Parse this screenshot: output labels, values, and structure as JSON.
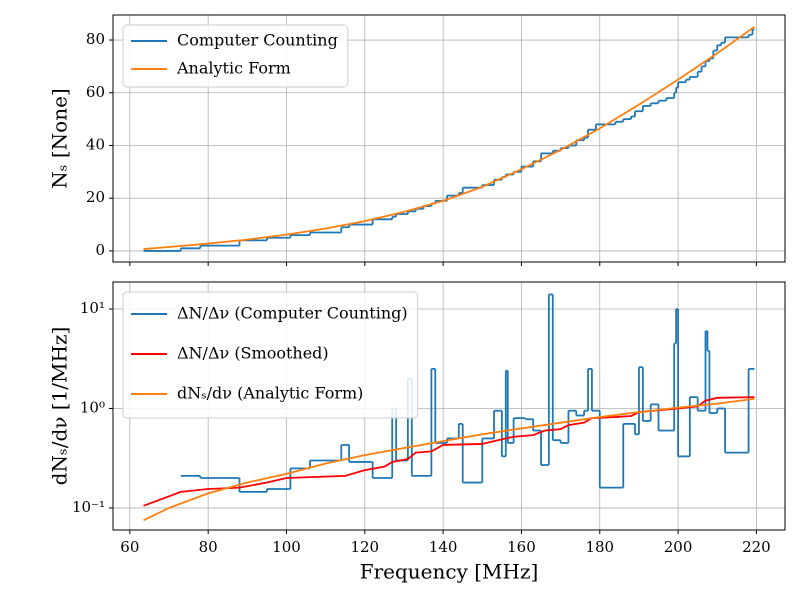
{
  "chart_data": [
    {
      "type": "line",
      "ylabel": "Nₛ [None]",
      "xlim": [
        55.7,
        227.3
      ],
      "ylim": [
        -4.2,
        89.5
      ],
      "xticks": [
        60,
        80,
        100,
        120,
        140,
        160,
        180,
        200,
        220
      ],
      "xticklabels": false,
      "yticks": [
        0,
        20,
        40,
        60,
        80
      ],
      "grid": true,
      "legend": "upper left",
      "series": [
        {
          "name": "Computer Counting",
          "color": "#1f77b4",
          "drawstyle": "steps",
          "bins": [
            63.5,
            73,
            78,
            88,
            95,
            101,
            106,
            114,
            116,
            122,
            127,
            128,
            131,
            133,
            135,
            137,
            138,
            141,
            144,
            145,
            150,
            153,
            155,
            156,
            158,
            160,
            163,
            165,
            168,
            170,
            172,
            174,
            176,
            177,
            179,
            184,
            186,
            188,
            189,
            191,
            193,
            195,
            197,
            199,
            199.5,
            200,
            202,
            203,
            205,
            206,
            207,
            208,
            209,
            210,
            211,
            212,
            218,
            219,
            219.5
          ],
          "values": [
            0,
            1,
            2,
            4,
            5,
            6,
            7,
            9,
            10,
            12,
            13,
            14,
            15,
            16,
            17,
            18,
            19,
            21,
            22,
            24,
            25,
            27,
            28,
            29,
            30,
            32,
            34,
            37,
            38,
            39,
            40,
            42,
            43,
            46,
            48,
            49,
            50,
            51,
            53,
            55,
            56,
            57,
            58,
            60,
            62,
            64,
            65,
            66,
            68,
            70,
            72,
            73,
            76,
            78,
            79,
            81,
            82,
            84
          ]
        },
        {
          "name": "Analytic Form",
          "color": "#ff7f0e",
          "x": [
            63.5,
            70,
            80,
            90,
            100,
            110,
            120,
            130,
            140,
            150,
            160,
            170,
            180,
            190,
            200,
            210,
            219.5
          ],
          "values": [
            0.7,
            1.5,
            2.8,
            4.3,
            6.2,
            8.5,
            11.3,
            14.8,
            19,
            24.3,
            31,
            38.3,
            46.5,
            55.5,
            65,
            75,
            85
          ]
        }
      ]
    },
    {
      "type": "line",
      "xlabel": "Frequency [MHz]",
      "ylabel": "dNₛ/dν [1/MHz]",
      "yscale": "log",
      "xlim": [
        55.7,
        227.3
      ],
      "ylim": [
        0.06,
        18.7
      ],
      "xticks": [
        60,
        80,
        100,
        120,
        140,
        160,
        180,
        200,
        220
      ],
      "xticklabels": true,
      "yticks": [
        {
          "value": 0.1,
          "label": "10⁻¹"
        },
        {
          "value": 1,
          "label": "10⁰"
        },
        {
          "value": 10,
          "label": "10¹"
        }
      ],
      "grid": true,
      "legend": "upper left",
      "series": [
        {
          "name": "ΔN/Δν (Computer Counting)",
          "color": "#1f77b4",
          "drawstyle": "steps",
          "bins": [
            73,
            78,
            88,
            95,
            101,
            106,
            114,
            116,
            122,
            127,
            128,
            131,
            132,
            137,
            138,
            141,
            144,
            145,
            150,
            153,
            155,
            156,
            156.5,
            158,
            161,
            163,
            165,
            167,
            168,
            170,
            172,
            174,
            176,
            177,
            178,
            180,
            186,
            189,
            190,
            191,
            193,
            195,
            199,
            199.5,
            200,
            203,
            205,
            207,
            207.5,
            208,
            210,
            212,
            218,
            219.5
          ],
          "values": [
            0.21,
            0.2,
            0.145,
            0.155,
            0.25,
            0.3,
            0.43,
            0.29,
            0.2,
            1.0,
            0.3,
            2.0,
            0.21,
            2.5,
            0.45,
            0.5,
            0.7,
            0.18,
            0.5,
            0.95,
            0.33,
            2.4,
            0.45,
            0.8,
            0.78,
            0.6,
            0.27,
            14,
            0.48,
            0.45,
            0.95,
            0.85,
            0.95,
            2.5,
            0.95,
            0.16,
            0.7,
            0.55,
            2.6,
            0.75,
            1.1,
            0.6,
            4.5,
            10,
            0.33,
            1.3,
            0.95,
            6,
            3.8,
            0.9,
            1.0,
            0.36,
            2.5
          ]
        },
        {
          "name": "ΔN/Δν (Smoothed)",
          "color": "#ff0000",
          "x": [
            63.5,
            73,
            80,
            88,
            95,
            100,
            115,
            120,
            125,
            127,
            131,
            133,
            137,
            140,
            150,
            153,
            158,
            163,
            166,
            170,
            172,
            176,
            178,
            184,
            188,
            190,
            200,
            205,
            207,
            210,
            219.5
          ],
          "values": [
            0.105,
            0.145,
            0.155,
            0.16,
            0.18,
            0.2,
            0.21,
            0.24,
            0.26,
            0.29,
            0.31,
            0.36,
            0.37,
            0.43,
            0.44,
            0.47,
            0.52,
            0.54,
            0.6,
            0.62,
            0.68,
            0.72,
            0.8,
            0.82,
            0.84,
            0.92,
            1.0,
            1.05,
            1.2,
            1.28,
            1.3
          ]
        },
        {
          "name": "dNₛ/dν (Analytic Form)",
          "color": "#ff7f0e",
          "x": [
            63.5,
            70,
            80,
            90,
            100,
            110,
            120,
            130,
            140,
            150,
            160,
            170,
            180,
            190,
            200,
            210,
            219.5
          ],
          "values": [
            0.075,
            0.1,
            0.14,
            0.18,
            0.22,
            0.28,
            0.34,
            0.4,
            0.47,
            0.55,
            0.63,
            0.72,
            0.82,
            0.92,
            1.02,
            1.12,
            1.25
          ]
        }
      ]
    }
  ]
}
